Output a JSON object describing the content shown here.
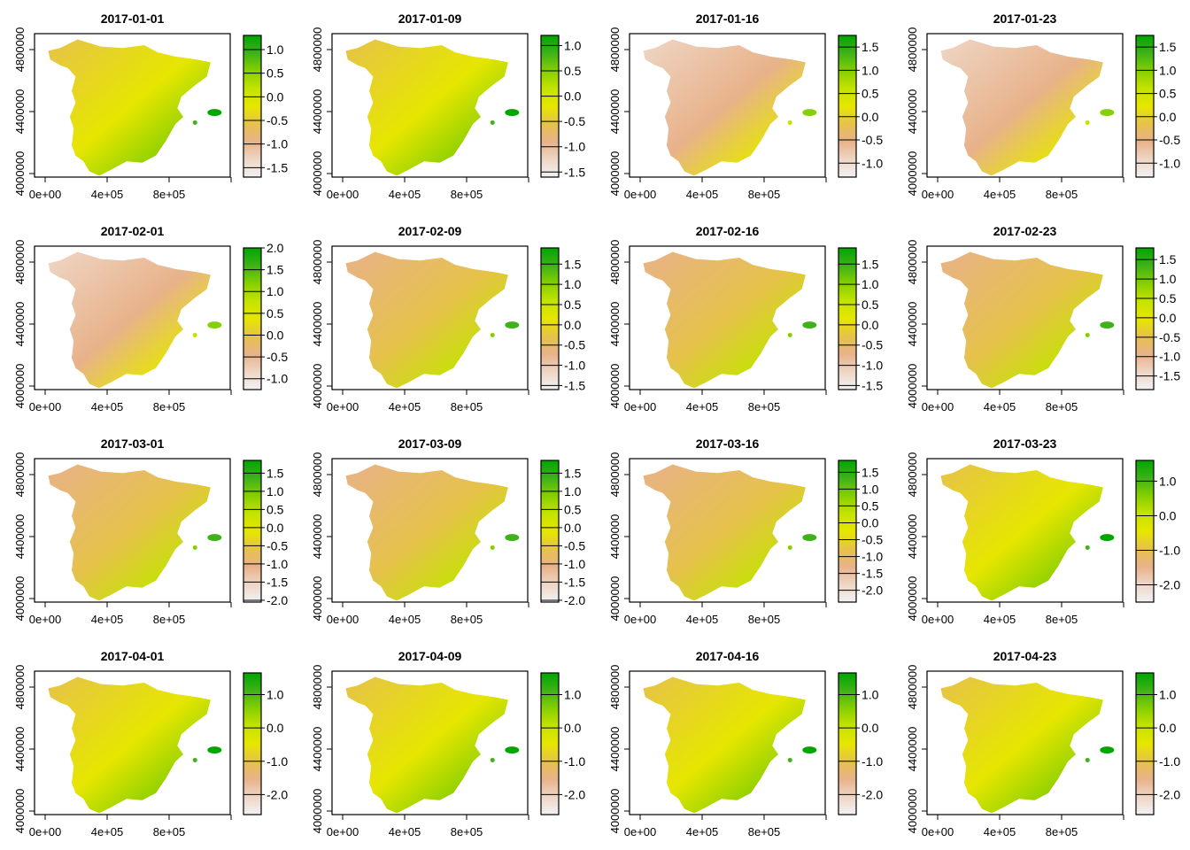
{
  "chart_data": {
    "type": "heatmap",
    "layout": "4x4 panels",
    "x_ticks": [
      "0e+00",
      "4e+05",
      "8e+05"
    ],
    "y_ticks": [
      "4000000",
      "4400000",
      "4800000"
    ],
    "xlim": [
      0,
      1100000
    ],
    "ylim": [
      3980000,
      4900000
    ],
    "colormap": [
      "#F2F2F2",
      "#EED6C5",
      "#E8B28A",
      "#E6C24A",
      "#E6E600",
      "#C4E300",
      "#86CF00",
      "#3DB21A",
      "#00A600"
    ],
    "panels": [
      {
        "title": "2017-01-01",
        "zlim": [
          -1.7,
          1.3
        ],
        "legend_ticks": [
          "1.0",
          "0.5",
          "0.0",
          "-0.5",
          "-1.0",
          "-1.5"
        ]
      },
      {
        "title": "2017-01-09",
        "zlim": [
          -1.6,
          1.2
        ],
        "legend_ticks": [
          "1.0",
          "0.5",
          "0.0",
          "-0.5",
          "-1.0",
          "-1.5"
        ]
      },
      {
        "title": "2017-01-16",
        "zlim": [
          -1.3,
          1.75
        ],
        "legend_ticks": [
          "1.5",
          "1.0",
          "0.5",
          "0.0",
          "-0.5",
          "-1.0"
        ]
      },
      {
        "title": "2017-01-23",
        "zlim": [
          -1.3,
          1.75
        ],
        "legend_ticks": [
          "1.5",
          "1.0",
          "0.5",
          "0.0",
          "-0.5",
          "-1.0"
        ]
      },
      {
        "title": "2017-02-01",
        "zlim": [
          -1.25,
          2.0
        ],
        "legend_ticks": [
          "2.0",
          "1.5",
          "1.0",
          "0.5",
          "0.0",
          "-0.5",
          "-1.0"
        ]
      },
      {
        "title": "2017-02-09",
        "zlim": [
          -1.6,
          1.9
        ],
        "legend_ticks": [
          "1.5",
          "1.0",
          "0.5",
          "0.0",
          "-0.5",
          "-1.0",
          "-1.5"
        ]
      },
      {
        "title": "2017-02-16",
        "zlim": [
          -1.6,
          1.9
        ],
        "legend_ticks": [
          "1.5",
          "1.0",
          "0.5",
          "0.0",
          "-0.5",
          "-1.0",
          "-1.5"
        ]
      },
      {
        "title": "2017-02-23",
        "zlim": [
          -1.85,
          1.8
        ],
        "legend_ticks": [
          "1.5",
          "1.0",
          "0.5",
          "0.0",
          "-0.5",
          "-1.0",
          "-1.5"
        ]
      },
      {
        "title": "2017-03-01",
        "zlim": [
          -2.05,
          1.85
        ],
        "legend_ticks": [
          "1.5",
          "1.0",
          "0.5",
          "0.0",
          "-0.5",
          "-1.0",
          "-1.5",
          "-2.0"
        ]
      },
      {
        "title": "2017-03-09",
        "zlim": [
          -2.05,
          1.85
        ],
        "legend_ticks": [
          "1.5",
          "1.0",
          "0.5",
          "0.0",
          "-0.5",
          "-1.0",
          "-1.5",
          "-2.0"
        ]
      },
      {
        "title": "2017-03-16",
        "zlim": [
          -2.35,
          1.85
        ],
        "legend_ticks": [
          "1.5",
          "1.0",
          "0.5",
          "0.0",
          "-0.5",
          "-1.0",
          "-1.5",
          "-2.0"
        ]
      },
      {
        "title": "2017-03-23",
        "zlim": [
          -2.5,
          1.6
        ],
        "legend_ticks": [
          "1.0",
          "0.0",
          "-1.0",
          "-2.0"
        ]
      },
      {
        "title": "2017-04-01",
        "zlim": [
          -2.6,
          1.65
        ],
        "legend_ticks": [
          "1.0",
          "0.0",
          "-1.0",
          "-2.0"
        ]
      },
      {
        "title": "2017-04-09",
        "zlim": [
          -2.6,
          1.65
        ],
        "legend_ticks": [
          "1.0",
          "0.0",
          "-1.0",
          "-2.0"
        ]
      },
      {
        "title": "2017-04-16",
        "zlim": [
          -2.6,
          1.65
        ],
        "legend_ticks": [
          "1.0",
          "0.0",
          "-1.0",
          "-2.0"
        ]
      },
      {
        "title": "2017-04-23",
        "zlim": [
          -2.6,
          1.65
        ],
        "legend_ticks": [
          "1.0",
          "0.0",
          "-1.0",
          "-2.0"
        ]
      }
    ]
  }
}
